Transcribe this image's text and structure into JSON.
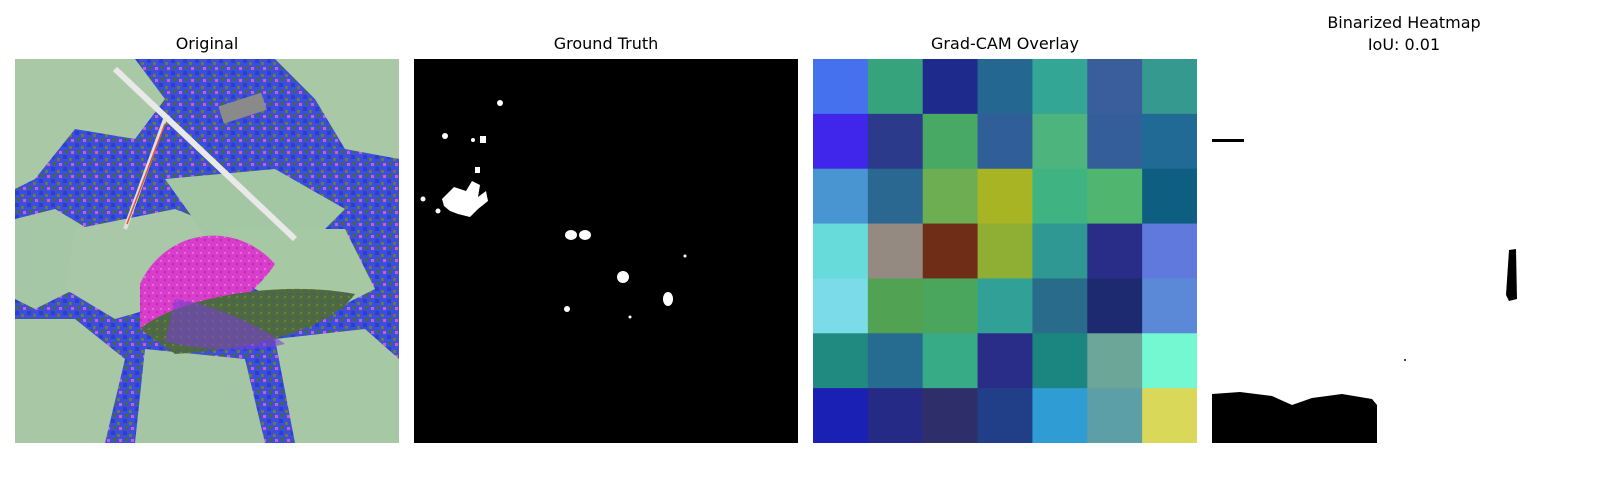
{
  "panels": [
    {
      "title": "Original"
    },
    {
      "title": "Ground Truth"
    },
    {
      "title": "Grad-CAM Overlay"
    },
    {
      "title": "Binarized Heatmap",
      "subtitle": "IoU: 0.01"
    }
  ],
  "gradcam": {
    "grid_size": 7,
    "colors": [
      [
        "#4570ee",
        "#36a37c",
        "#1e2a8c",
        "#246892",
        "#33a695",
        "#3a5e9c",
        "#35998f"
      ],
      [
        "#3f26ea",
        "#2b3a8a",
        "#47a964",
        "#2f5e99",
        "#4db47e",
        "#335e9a",
        "#216a96"
      ],
      [
        "#4995d1",
        "#2a6892",
        "#6cae51",
        "#a8b424",
        "#3fb482",
        "#50b66f",
        "#0e5e82"
      ],
      [
        "#67dbd9",
        "#958a82",
        "#6f2d18",
        "#8eae34",
        "#2f9893",
        "#2a2d87",
        "#5f79dc"
      ],
      [
        "#7bdbe8",
        "#52a253",
        "#4aa55d",
        "#31a096",
        "#296b8a",
        "#1e2a70",
        "#5b89d8"
      ],
      [
        "#208a81",
        "#266c90",
        "#37aa86",
        "#2a2d88",
        "#1b8680",
        "#6ca699",
        "#74f8d2"
      ],
      [
        "#1b20b5",
        "#262a87",
        "#2e2f6a",
        "#213f89",
        "#2f9dd4",
        "#5c9fa6",
        "#d9d858"
      ]
    ]
  }
}
